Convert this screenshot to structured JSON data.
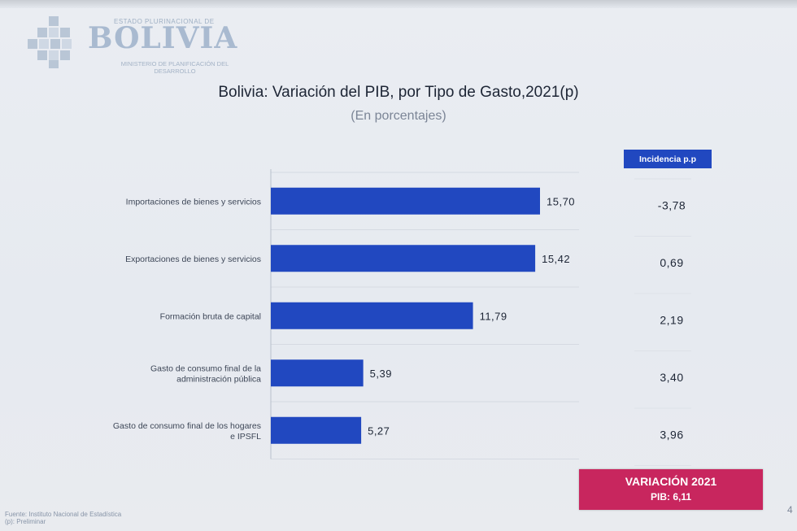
{
  "logo": {
    "top_line": "ESTADO PLURINACIONAL DE",
    "word": "BOLIVIA",
    "ministry": "MINISTERIO DE PLANIFICACIÓN DEL DESARROLLO",
    "color": "#a9bad0"
  },
  "header": {
    "title": "Bolivia: Variación del PIB, por Tipo de Gasto,2021(p)",
    "subtitle": "(En porcentajes)"
  },
  "incidence_header": "Incidencia p.p",
  "chart_data": {
    "type": "bar",
    "orientation": "horizontal",
    "title": "Bolivia: Variación del PIB, por Tipo de Gasto,2021(p)",
    "subtitle": "(En porcentajes)",
    "categories": [
      "Importaciones de bienes y servicios",
      "Exportaciones de bienes y servicios",
      "Formación bruta de capital",
      "Gasto de consumo final de la administración pública",
      "Gasto de consumo final de los hogares e IPSFL"
    ],
    "category_lines": [
      [
        "Importaciones de bienes y servicios"
      ],
      [
        "Exportaciones de bienes y servicios"
      ],
      [
        "Formación bruta de capital"
      ],
      [
        "Gasto de consumo final de la",
        "administración pública"
      ],
      [
        "Gasto de consumo final de los hogares",
        "e IPSFL"
      ]
    ],
    "values": [
      15.7,
      15.42,
      11.79,
      5.39,
      5.27
    ],
    "value_labels": [
      "15,70",
      "15,42",
      "11,79",
      "5,39",
      "5,27"
    ],
    "incidence": [
      -3.78,
      0.69,
      2.19,
      3.4,
      3.96
    ],
    "incidence_labels": [
      "-3,78",
      "0,69",
      "2,19",
      "3,40",
      "3,96"
    ],
    "xlim": [
      0,
      18
    ],
    "grid": true,
    "bar_color": "#2148c0"
  },
  "summary": {
    "line1": "VARIACIÓN 2021",
    "line2": "PIB: 6,11"
  },
  "footer": {
    "source_line1": "Fuente: Instituto Nacional de Estadística",
    "source_line2": "(p): Preliminar"
  },
  "page_number": "4"
}
